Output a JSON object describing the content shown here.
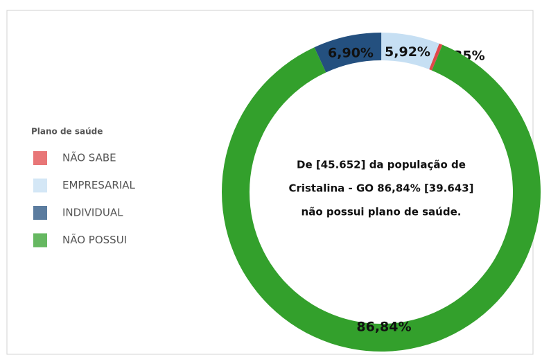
{
  "chart_data": {
    "type": "donut",
    "legend_title": "Plano de saúde",
    "categories": [
      "NÃO SABE",
      "EMPRESARIAL",
      "INDIVIDUAL",
      "NÃO POSSUI"
    ],
    "values": [
      0.35,
      5.92,
      6.9,
      86.84
    ],
    "value_labels": [
      "0,35%",
      "5,92%",
      "6,90%",
      "86,84%"
    ],
    "colors": [
      "#e0484a",
      "#c6dff3",
      "#24507f",
      "#33a02c"
    ],
    "center_text": [
      "De [45.652] da população de",
      "Cristalina - GO 86,84% [39.643]",
      "não possui plano de saúde."
    ]
  }
}
